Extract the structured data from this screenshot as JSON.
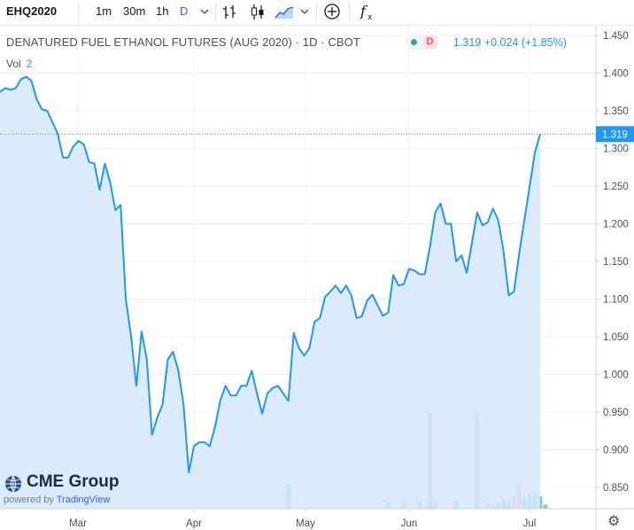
{
  "toolbar": {
    "symbol": "EHQ2020",
    "intervals": [
      "1m",
      "30m",
      "1h",
      "D"
    ],
    "active_interval": "D",
    "icons": [
      "chevron-down-icon",
      "bar-chart-icon",
      "candles-icon",
      "area-chart-icon",
      "chevron-down-icon",
      "plus-circle-icon",
      "function-icon"
    ]
  },
  "legend": {
    "title": "DENATURED FUEL ETHANOL FUTURES (AUG 2020) · 1D · CBOT",
    "indicator": "D",
    "price": "1.319",
    "change": "+0.024",
    "change_pct": "(+1.85%)",
    "volume_label": "Vol",
    "volume_value": "2"
  },
  "logo": {
    "name": "CME Group",
    "powered_by": "powered by",
    "provider": "TradingView"
  },
  "colors": {
    "line": "#2196f3",
    "area": "#d6e8fb",
    "vol_up": "#80cbc4",
    "vol_down": "#f4a6a6",
    "price_badge": "#2196f3"
  },
  "chart_data": {
    "type": "area",
    "title": "DENATURED FUEL ETHANOL FUTURES (AUG 2020)",
    "interval": "1D",
    "exchange": "CBOT",
    "x_labels": [
      "Mar",
      "Apr",
      "May",
      "Jun",
      "Jul"
    ],
    "y_ticks": [
      "1.450",
      "1.400",
      "1.350",
      "1.300",
      "1.250",
      "1.200",
      "1.150",
      "1.100",
      "1.050",
      "1.000",
      "0.950",
      "0.900",
      "0.850"
    ],
    "ylim": [
      0.82,
      1.465
    ],
    "last_price": 1.319,
    "series": [
      {
        "name": "EHQ2020",
        "values": [
          1.375,
          1.38,
          1.378,
          1.38,
          1.392,
          1.395,
          1.39,
          1.365,
          1.352,
          1.35,
          1.335,
          1.32,
          1.288,
          1.288,
          1.303,
          1.31,
          1.305,
          1.282,
          1.28,
          1.245,
          1.28,
          1.255,
          1.218,
          1.225,
          1.1,
          1.05,
          0.985,
          1.057,
          1.02,
          0.92,
          0.943,
          0.96,
          1.02,
          1.03,
          1.005,
          0.96,
          0.87,
          0.905,
          0.91,
          0.91,
          0.905,
          0.93,
          0.965,
          0.985,
          0.972,
          0.972,
          0.985,
          0.985,
          1.005,
          0.975,
          0.948,
          0.975,
          0.982,
          0.985,
          0.975,
          0.965,
          1.055,
          1.035,
          1.025,
          1.035,
          1.07,
          1.075,
          1.103,
          1.11,
          1.118,
          1.108,
          1.118,
          1.105,
          1.075,
          1.077,
          1.098,
          1.106,
          1.092,
          1.078,
          1.082,
          1.132,
          1.118,
          1.12,
          1.14,
          1.138,
          1.133,
          1.133,
          1.17,
          1.215,
          1.227,
          1.2,
          1.2,
          1.15,
          1.158,
          1.135,
          1.175,
          1.215,
          1.198,
          1.202,
          1.22,
          1.205,
          1.165,
          1.105,
          1.11,
          1.16,
          1.205,
          1.25,
          1.295,
          1.319
        ]
      }
    ],
    "volume": [
      {
        "i": 55,
        "v": 12,
        "up": true
      },
      {
        "i": 74,
        "v": 3,
        "up": true
      },
      {
        "i": 77,
        "v": 4,
        "up": false
      },
      {
        "i": 80,
        "v": 4,
        "up": true
      },
      {
        "i": 82,
        "v": 46,
        "up": true
      },
      {
        "i": 83,
        "v": 3,
        "up": true
      },
      {
        "i": 87,
        "v": 4,
        "up": true
      },
      {
        "i": 91,
        "v": 46,
        "up": true
      },
      {
        "i": 93,
        "v": 3,
        "up": false
      },
      {
        "i": 94,
        "v": 2,
        "up": false
      },
      {
        "i": 95,
        "v": 3,
        "up": true
      },
      {
        "i": 96,
        "v": 4,
        "up": true
      },
      {
        "i": 97,
        "v": 4,
        "up": true
      },
      {
        "i": 98,
        "v": 6,
        "up": false
      },
      {
        "i": 99,
        "v": 12,
        "up": false
      },
      {
        "i": 100,
        "v": 5,
        "up": true
      },
      {
        "i": 101,
        "v": 7,
        "up": true
      },
      {
        "i": 102,
        "v": 8,
        "up": true
      },
      {
        "i": 103,
        "v": 6,
        "up": true
      },
      {
        "i": 104,
        "v": 2,
        "up": true
      }
    ]
  }
}
